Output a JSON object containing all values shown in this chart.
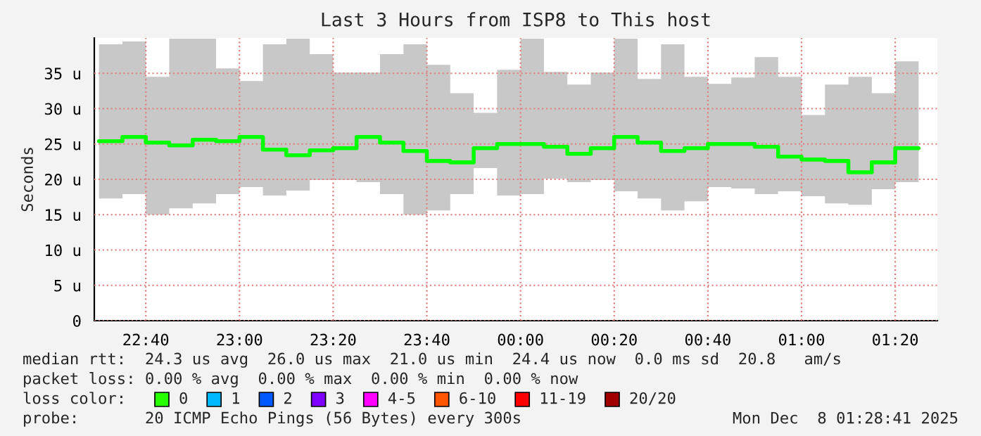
{
  "chart_data": {
    "type": "step",
    "title": "Last 3 Hours from ISP8 to This host",
    "ylabel": "Seconds",
    "x": [
      "2025-12-07T22:30",
      "2025-12-07T22:35",
      "2025-12-07T22:40",
      "2025-12-07T22:45",
      "2025-12-07T22:50",
      "2025-12-07T22:55",
      "2025-12-07T23:00",
      "2025-12-07T23:05",
      "2025-12-07T23:10",
      "2025-12-07T23:15",
      "2025-12-07T23:20",
      "2025-12-07T23:25",
      "2025-12-07T23:30",
      "2025-12-07T23:35",
      "2025-12-07T23:40",
      "2025-12-07T23:45",
      "2025-12-07T23:50",
      "2025-12-07T23:55",
      "2025-12-08T00:00",
      "2025-12-08T00:05",
      "2025-12-08T00:10",
      "2025-12-08T00:15",
      "2025-12-08T00:20",
      "2025-12-08T00:25",
      "2025-12-08T00:30",
      "2025-12-08T00:35",
      "2025-12-08T00:40",
      "2025-12-08T00:45",
      "2025-12-08T00:50",
      "2025-12-08T00:55",
      "2025-12-08T01:00",
      "2025-12-08T01:05",
      "2025-12-08T01:10",
      "2025-12-08T01:15",
      "2025-12-08T01:20",
      "2025-12-08T01:25"
    ],
    "series": [
      {
        "color": "#00ff00",
        "values": [
          25.4,
          26.0,
          25.2,
          24.8,
          25.6,
          25.4,
          26.0,
          24.2,
          23.4,
          24.1,
          24.4,
          26.0,
          25.2,
          24.0,
          22.6,
          22.4,
          24.4,
          25.0,
          25.0,
          24.6,
          23.6,
          24.4,
          26.0,
          25.2,
          24.0,
          24.4,
          25.0,
          25.0,
          24.6,
          23.2,
          22.8,
          22.6,
          21.0,
          22.4,
          24.4,
          24.4
        ],
        "lower": [
          17.3,
          17.9,
          15.0,
          15.9,
          16.6,
          17.9,
          18.9,
          17.7,
          18.4,
          19.9,
          19.9,
          19.6,
          17.9,
          15.0,
          15.6,
          17.9,
          21.6,
          17.7,
          17.9,
          20.1,
          19.6,
          19.9,
          18.3,
          17.3,
          15.6,
          16.9,
          18.9,
          18.7,
          17.9,
          18.3,
          17.6,
          16.6,
          16.4,
          18.6,
          19.6,
          19.6
        ],
        "upper": [
          39.1,
          39.5,
          34.5,
          39.9,
          39.9,
          35.7,
          33.9,
          39.1,
          39.9,
          37.7,
          35.1,
          35.1,
          37.7,
          39.1,
          36.2,
          32.2,
          29.4,
          35.5,
          39.9,
          35.2,
          33.4,
          35.1,
          39.9,
          34.2,
          39.1,
          34.5,
          33.5,
          34.4,
          37.3,
          34.5,
          29.1,
          33.4,
          34.5,
          32.2,
          36.7,
          36.7
        ]
      }
    ],
    "xlim": [
      "2025-12-07T22:29",
      "2025-12-08T01:29"
    ],
    "xticks": [
      {
        "value": "2025-12-07T22:40",
        "label": "22:40"
      },
      {
        "value": "2025-12-07T23:00",
        "label": "23:00"
      },
      {
        "value": "2025-12-07T23:20",
        "label": "23:20"
      },
      {
        "value": "2025-12-07T23:40",
        "label": "23:40"
      },
      {
        "value": "2025-12-08T00:00",
        "label": "00:00"
      },
      {
        "value": "2025-12-08T00:20",
        "label": "00:20"
      },
      {
        "value": "2025-12-08T00:40",
        "label": "00:40"
      },
      {
        "value": "2025-12-08T01:00",
        "label": "01:00"
      },
      {
        "value": "2025-12-08T01:20",
        "label": "01:20"
      }
    ],
    "ylim": [
      0,
      40
    ],
    "yticks": [
      0,
      {
        "value": 5,
        "label": "5 u"
      },
      {
        "value": 10,
        "label": "10 u"
      },
      {
        "value": 15,
        "label": "15 u"
      },
      {
        "value": 20,
        "label": "20 u"
      },
      {
        "value": 25,
        "label": "25 u"
      },
      {
        "value": 30,
        "label": "30 u"
      },
      {
        "value": 35,
        "label": "35 u"
      }
    ],
    "grid": true,
    "line_style": "solid",
    "annotations": [
      "median rtt:  24.3 us avg  26.0 us max  21.0 us min  24.4 us now  0.0 ms sd  20.8   am/s",
      "packet loss: 0.00 % avg  0.00 % max  0.00 % min  0.00 % now",
      "loss color:",
      "0",
      "1",
      "2",
      "3",
      "4-5",
      "6-10",
      "11-19",
      "20/20",
      "probe:       20 ICMP Echo Pings (56 Bytes) every 300s",
      "Mon Dec  8 01:28:41 2025"
    ]
  }
}
